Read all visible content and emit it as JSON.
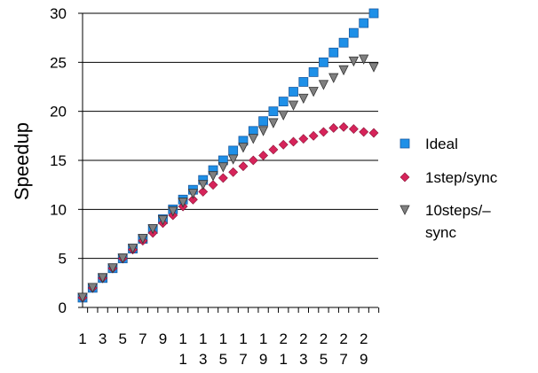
{
  "chart_data": {
    "type": "scatter",
    "ylabel": "Speedup",
    "xlabel": "",
    "title": "",
    "ylim": [
      0,
      30
    ],
    "yticks": [
      0,
      5,
      10,
      15,
      20,
      25,
      30
    ],
    "x": [
      1,
      2,
      3,
      4,
      5,
      6,
      7,
      8,
      9,
      10,
      11,
      12,
      13,
      14,
      15,
      16,
      17,
      18,
      19,
      20,
      21,
      22,
      23,
      24,
      25,
      26,
      27,
      28,
      29,
      30
    ],
    "xtick_labels": [
      {
        "x": 1,
        "lines": [
          "1"
        ]
      },
      {
        "x": 3,
        "lines": [
          "3"
        ]
      },
      {
        "x": 5,
        "lines": [
          "5"
        ]
      },
      {
        "x": 7,
        "lines": [
          "7"
        ]
      },
      {
        "x": 9,
        "lines": [
          "9"
        ]
      },
      {
        "x": 11,
        "lines": [
          "1",
          "1"
        ]
      },
      {
        "x": 13,
        "lines": [
          "1",
          "3"
        ]
      },
      {
        "x": 15,
        "lines": [
          "1",
          "5"
        ]
      },
      {
        "x": 17,
        "lines": [
          "1",
          "7"
        ]
      },
      {
        "x": 19,
        "lines": [
          "1",
          "9"
        ]
      },
      {
        "x": 21,
        "lines": [
          "2",
          "1"
        ]
      },
      {
        "x": 23,
        "lines": [
          "2",
          "3"
        ]
      },
      {
        "x": 25,
        "lines": [
          "2",
          "5"
        ]
      },
      {
        "x": 27,
        "lines": [
          "2",
          "7"
        ]
      },
      {
        "x": 29,
        "lines": [
          "2",
          "9"
        ]
      }
    ],
    "grid": "horizontal",
    "legend_position": "right",
    "series": [
      {
        "name": "Ideal",
        "marker": "square",
        "color": "#1e90e8",
        "values": [
          1,
          2,
          3,
          4,
          5,
          6,
          7,
          8,
          9,
          10,
          11,
          12,
          13,
          14,
          15,
          16,
          17,
          18,
          19,
          20,
          21,
          22,
          23,
          24,
          25,
          26,
          27,
          28,
          29,
          30
        ]
      },
      {
        "name": "1step/sync",
        "marker": "diamond",
        "color": "#d6245a",
        "values": [
          1,
          2,
          3,
          4,
          5,
          5.9,
          6.8,
          7.6,
          8.6,
          9.4,
          10.3,
          11.0,
          11.8,
          12.5,
          13.2,
          13.8,
          14.4,
          15.0,
          15.5,
          16.1,
          16.6,
          16.9,
          17.2,
          17.5,
          17.9,
          18.3,
          18.4,
          18.2,
          17.9,
          17.8
        ]
      },
      {
        "name": "10steps/–sync",
        "marker": "triangle-down",
        "color": "#808080",
        "values": [
          1,
          2,
          3,
          4,
          5,
          6,
          7,
          8,
          8.9,
          9.8,
          10.7,
          11.6,
          12.5,
          13.4,
          14.3,
          15.1,
          16.3,
          17.2,
          18.0,
          18.8,
          19.6,
          20.6,
          21.3,
          22.0,
          22.7,
          23.4,
          24.2,
          25.1,
          25.3,
          24.5
        ]
      }
    ]
  },
  "legend": {
    "items": [
      {
        "label_lines": [
          "Ideal"
        ]
      },
      {
        "label_lines": [
          "1step/sync"
        ]
      },
      {
        "label_lines": [
          "10steps/–",
          "sync"
        ]
      }
    ]
  }
}
